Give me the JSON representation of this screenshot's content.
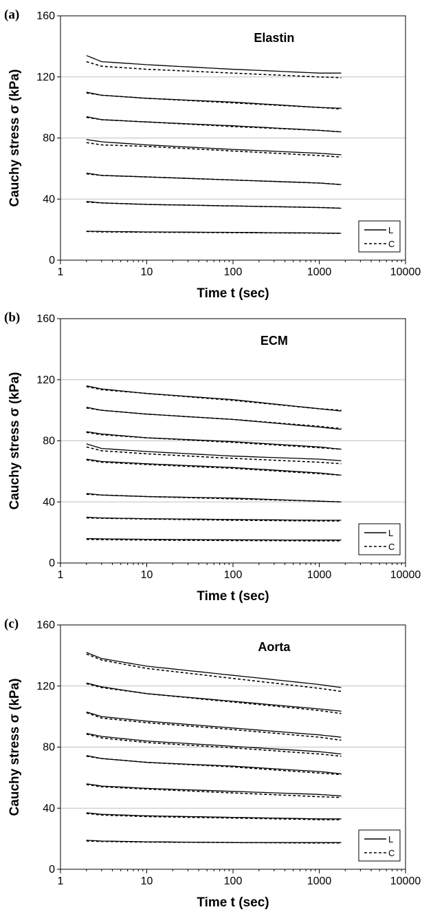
{
  "colors": {
    "line": "#000000",
    "grid": "#bfbfbf",
    "background": "#ffffff"
  },
  "chart_data": [
    {
      "panel_label": "(a)",
      "type": "line",
      "title": "Elastin",
      "xlabel": "Time t (sec)",
      "ylabel": "Cauchy stress σ (kPa)",
      "x_scale": "log",
      "xlim": [
        1,
        10000
      ],
      "ylim": [
        0,
        160
      ],
      "x_ticks": [
        "1",
        "10",
        "100",
        "1000",
        "10000"
      ],
      "y_ticks": [
        "0",
        "40",
        "80",
        "120",
        "160"
      ],
      "grid": "horizontal",
      "legend_position": "bottom-right",
      "legend": [
        "L",
        "C"
      ],
      "x": [
        2,
        3,
        10,
        100,
        1000,
        1800
      ],
      "series": [
        {
          "name": "L",
          "style": "solid",
          "curves": [
            [
              134,
              130,
              128,
              125,
              122.5,
              122.5
            ],
            [
              110,
              108,
              106,
              103.5,
              100,
              99.5
            ],
            [
              94,
              92,
              90.5,
              88,
              85,
              84
            ],
            [
              79,
              77.5,
              75.5,
              72.5,
              70,
              69
            ],
            [
              57,
              55.5,
              54.5,
              52.5,
              50.5,
              49.5
            ],
            [
              38.5,
              37.5,
              36.5,
              35.5,
              34.5,
              34
            ],
            [
              19,
              18.8,
              18.5,
              18.2,
              17.8,
              17.6
            ]
          ]
        },
        {
          "name": "C",
          "style": "dashed",
          "curves": [
            [
              130,
              127,
              125,
              122.5,
              120,
              119.5
            ],
            [
              109.5,
              108,
              106,
              103,
              100,
              99
            ],
            [
              93.5,
              92,
              90.5,
              87.5,
              85,
              84
            ],
            [
              77,
              75.5,
              74.5,
              71.5,
              68.5,
              67.5
            ],
            [
              56.5,
              55.5,
              54.5,
              52.5,
              50.5,
              49.5
            ],
            [
              38,
              37.5,
              36.5,
              35.5,
              34.5,
              34
            ],
            [
              18.8,
              18.5,
              18.3,
              18,
              17.7,
              17.5
            ]
          ]
        }
      ]
    },
    {
      "panel_label": "(b)",
      "type": "line",
      "title": "ECM",
      "xlabel": "Time t (sec)",
      "ylabel": "Cauchy stress σ (kPa)",
      "x_scale": "log",
      "xlim": [
        1,
        10000
      ],
      "ylim": [
        0,
        160
      ],
      "x_ticks": [
        "1",
        "10",
        "100",
        "1000",
        "10000"
      ],
      "y_ticks": [
        "0",
        "40",
        "80",
        "120",
        "160"
      ],
      "grid": "horizontal",
      "legend_position": "bottom-right",
      "legend": [
        "L",
        "C"
      ],
      "x": [
        2,
        3,
        10,
        100,
        1000,
        1800
      ],
      "series": [
        {
          "name": "L",
          "style": "solid",
          "curves": [
            [
              116,
              114,
              111,
              107,
              101,
              99.5
            ],
            [
              102,
              100,
              97.5,
              94,
              89,
              87.5
            ],
            [
              86,
              84.5,
              82,
              79.5,
              76,
              74.5
            ],
            [
              78,
              75,
              73,
              70,
              68,
              67
            ],
            [
              68,
              66.5,
              65,
              62.5,
              59,
              57.5
            ],
            [
              45.5,
              44.5,
              43.5,
              42.5,
              40.5,
              40
            ],
            [
              30,
              29.5,
              29,
              28.5,
              28,
              28
            ],
            [
              16,
              15.8,
              15.5,
              15.2,
              15,
              15
            ]
          ]
        },
        {
          "name": "C",
          "style": "dashed",
          "curves": [
            [
              115.5,
              113.5,
              111,
              106.5,
              101,
              100
            ],
            [
              101.5,
              100,
              97.5,
              94,
              89.5,
              88
            ],
            [
              85.5,
              84,
              82,
              79,
              75.5,
              74.5
            ],
            [
              76,
              73.5,
              71.5,
              68.5,
              66,
              65
            ],
            [
              67.5,
              66,
              64.5,
              62,
              58.5,
              57.5
            ],
            [
              45,
              44.5,
              43.5,
              42,
              40.5,
              40
            ],
            [
              29.5,
              29.3,
              28.8,
              28,
              27.5,
              27.5
            ],
            [
              15.5,
              15.3,
              15,
              14.7,
              14.5,
              14.5
            ]
          ]
        }
      ]
    },
    {
      "panel_label": "(c)",
      "type": "line",
      "title": "Aorta",
      "xlabel": "Time t (sec)",
      "ylabel": "Cauchy stress σ (kPa)",
      "x_scale": "log",
      "xlim": [
        1,
        10000
      ],
      "ylim": [
        0,
        160
      ],
      "x_ticks": [
        "1",
        "10",
        "100",
        "1000",
        "10000"
      ],
      "y_ticks": [
        "0",
        "40",
        "80",
        "120",
        "160"
      ],
      "grid": "horizontal",
      "legend_position": "bottom-right",
      "legend": [
        "L",
        "C"
      ],
      "x": [
        2,
        3,
        10,
        100,
        1000,
        1800
      ],
      "series": [
        {
          "name": "L",
          "style": "solid",
          "curves": [
            [
              142,
              138,
              133,
              127,
              121,
              119
            ],
            [
              122,
              119.5,
              115,
              110,
              105,
              103.5
            ],
            [
              103,
              100,
              97,
              92.5,
              88,
              86.5
            ],
            [
              89,
              87,
              84,
              80.5,
              77,
              75.5
            ],
            [
              74.5,
              72.5,
              70,
              67.5,
              64,
              62.5
            ],
            [
              56,
              54.5,
              53,
              51,
              49,
              48
            ],
            [
              37,
              36,
              35,
              34,
              33,
              33
            ],
            [
              19,
              18.5,
              18,
              17.5,
              17.5,
              17.5
            ]
          ]
        },
        {
          "name": "C",
          "style": "dashed",
          "curves": [
            [
              141,
              137,
              131.5,
              125,
              118.5,
              116.5
            ],
            [
              121.5,
              119,
              115,
              109.5,
              104,
              102
            ],
            [
              102.5,
              99,
              96,
              91.5,
              86.5,
              84.5
            ],
            [
              88.5,
              86,
              83,
              79.5,
              75.5,
              74
            ],
            [
              74,
              72.5,
              70,
              67,
              63,
              62
            ],
            [
              55.5,
              54,
              52.5,
              50,
              47.5,
              47
            ],
            [
              36.5,
              35.5,
              34.5,
              33.5,
              32.5,
              32.5
            ],
            [
              18.5,
              18.2,
              17.8,
              17.5,
              17.2,
              17.2
            ]
          ]
        }
      ]
    }
  ]
}
